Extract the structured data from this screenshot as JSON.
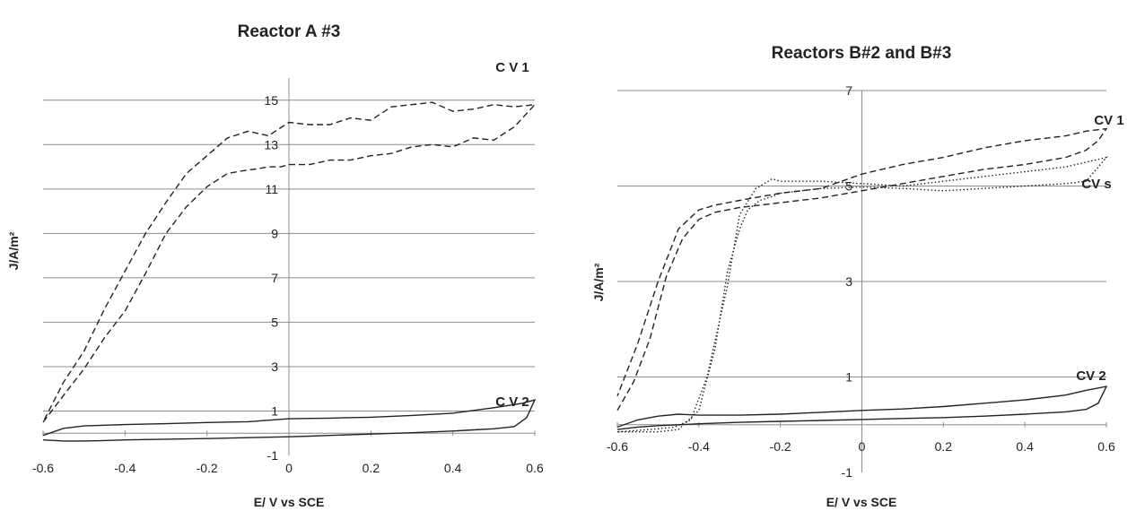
{
  "chart_data": [
    {
      "type": "line",
      "title": "Reactor A #3",
      "xlabel": "E/ V vs SCE",
      "ylabel": "J/A/m²",
      "xlim": [
        -0.6,
        0.6
      ],
      "ylim": [
        -1,
        16
      ],
      "grid": "horizontal",
      "xticks": [
        "-0.6",
        "-0.4",
        "-0.2",
        "0",
        "0.2",
        "0.4",
        "0.6"
      ],
      "yticks": [
        "-1",
        "1",
        "3",
        "5",
        "7",
        "9",
        "11",
        "13",
        "15"
      ],
      "series": [
        {
          "name": "C V 1",
          "style": "dashed",
          "x": [
            -0.6,
            -0.55,
            -0.5,
            -0.45,
            -0.4,
            -0.35,
            -0.3,
            -0.25,
            -0.2,
            -0.15,
            -0.12,
            -0.08,
            -0.05,
            -0.02,
            0.0,
            0.05,
            0.1,
            0.15,
            0.2,
            0.25,
            0.3,
            0.35,
            0.4,
            0.45,
            0.5,
            0.55,
            0.6,
            0.55,
            0.5,
            0.45,
            0.4,
            0.35,
            0.3,
            0.25,
            0.2,
            0.15,
            0.1,
            0.05,
            0.0,
            -0.05,
            -0.1,
            -0.15,
            -0.2,
            -0.25,
            -0.3,
            -0.35,
            -0.4,
            -0.45,
            -0.5,
            -0.55,
            -0.6
          ],
          "y": [
            0.5,
            1.7,
            2.9,
            4.3,
            5.5,
            7.2,
            9.0,
            10.2,
            11.1,
            11.7,
            11.8,
            11.9,
            12.0,
            12.0,
            12.1,
            12.1,
            12.3,
            12.3,
            12.5,
            12.6,
            12.9,
            13.0,
            12.9,
            13.3,
            13.2,
            13.8,
            14.8,
            14.7,
            14.8,
            14.6,
            14.5,
            14.9,
            14.8,
            14.7,
            14.1,
            14.2,
            13.9,
            13.9,
            14.0,
            13.4,
            13.6,
            13.3,
            12.5,
            11.7,
            10.4,
            9.0,
            7.3,
            5.6,
            3.7,
            2.3,
            0.5
          ]
        },
        {
          "name": "C V 2",
          "style": "solid",
          "x": [
            -0.6,
            -0.55,
            -0.5,
            -0.45,
            -0.4,
            -0.3,
            -0.2,
            -0.1,
            -0.05,
            0.0,
            0.05,
            0.1,
            0.2,
            0.3,
            0.4,
            0.45,
            0.5,
            0.55,
            0.58,
            0.6,
            0.57,
            0.5,
            0.4,
            0.3,
            0.2,
            0.1,
            0.0,
            -0.1,
            -0.2,
            -0.3,
            -0.4,
            -0.5,
            -0.55,
            -0.6
          ],
          "y": [
            -0.3,
            -0.35,
            -0.35,
            -0.33,
            -0.3,
            -0.27,
            -0.24,
            -0.2,
            -0.18,
            -0.16,
            -0.13,
            -0.1,
            -0.04,
            0.02,
            0.1,
            0.15,
            0.2,
            0.3,
            0.7,
            1.5,
            1.35,
            1.15,
            0.9,
            0.8,
            0.72,
            0.68,
            0.65,
            0.52,
            0.48,
            0.43,
            0.39,
            0.33,
            0.22,
            -0.1
          ]
        }
      ]
    },
    {
      "type": "line",
      "title": "Reactors B#2 and B#3",
      "xlabel": "E/ V vs SCE",
      "ylabel": "J/A/m²",
      "xlim": [
        -0.6,
        0.6
      ],
      "ylim": [
        -1,
        7
      ],
      "grid": "horizontal",
      "xticks": [
        "-0.6",
        "-0.4",
        "-0.2",
        "0",
        "0.2",
        "0.4",
        "0.6"
      ],
      "yticks": [
        "-1",
        "1",
        "3",
        "5",
        "7"
      ],
      "series": [
        {
          "name": "CV 1",
          "style": "dashed",
          "x": [
            -0.6,
            -0.56,
            -0.52,
            -0.48,
            -0.44,
            -0.4,
            -0.36,
            -0.3,
            -0.2,
            -0.1,
            0.0,
            0.1,
            0.2,
            0.3,
            0.4,
            0.5,
            0.55,
            0.58,
            0.6,
            0.55,
            0.5,
            0.4,
            0.3,
            0.2,
            0.1,
            0.0,
            -0.1,
            -0.2,
            -0.3,
            -0.36,
            -0.4,
            -0.45,
            -0.5,
            -0.55,
            -0.6
          ],
          "y": [
            0.3,
            0.9,
            1.8,
            3.1,
            3.9,
            4.3,
            4.45,
            4.55,
            4.65,
            4.75,
            4.9,
            5.05,
            5.2,
            5.35,
            5.45,
            5.6,
            5.75,
            5.95,
            6.2,
            6.15,
            6.05,
            5.95,
            5.8,
            5.6,
            5.45,
            5.25,
            4.95,
            4.85,
            4.7,
            4.6,
            4.5,
            4.1,
            3.0,
            1.7,
            0.6
          ]
        },
        {
          "name": "CV s",
          "style": "dotted",
          "x": [
            -0.6,
            -0.5,
            -0.45,
            -0.4,
            -0.36,
            -0.33,
            -0.3,
            -0.28,
            -0.25,
            -0.22,
            -0.2,
            -0.1,
            0.0,
            0.1,
            0.2,
            0.3,
            0.4,
            0.5,
            0.55,
            0.6,
            0.55,
            0.5,
            0.4,
            0.3,
            0.2,
            0.1,
            0.0,
            -0.1,
            -0.2,
            -0.22,
            -0.26,
            -0.3,
            -0.33,
            -0.38,
            -0.42,
            -0.46,
            -0.52,
            -0.6
          ],
          "y": [
            -0.15,
            -0.15,
            -0.1,
            0.3,
            1.6,
            3.2,
            4.1,
            4.5,
            4.7,
            4.78,
            4.85,
            4.95,
            4.98,
            4.95,
            4.9,
            4.95,
            5.0,
            5.05,
            5.1,
            5.6,
            5.5,
            5.4,
            5.3,
            5.2,
            5.1,
            5.0,
            5.05,
            5.1,
            5.1,
            5.15,
            4.95,
            4.4,
            2.9,
            1.0,
            0.1,
            -0.05,
            -0.1,
            -0.15
          ]
        },
        {
          "name": "CV 2",
          "style": "solid",
          "x": [
            -0.6,
            -0.55,
            -0.5,
            -0.45,
            -0.4,
            -0.3,
            -0.2,
            -0.1,
            0.0,
            0.1,
            0.2,
            0.3,
            0.4,
            0.5,
            0.55,
            0.58,
            0.6,
            0.55,
            0.5,
            0.4,
            0.3,
            0.2,
            0.1,
            0.0,
            -0.1,
            -0.2,
            -0.3,
            -0.4,
            -0.45,
            -0.5,
            -0.55,
            -0.6
          ],
          "y": [
            -0.1,
            -0.05,
            -0.02,
            0.0,
            0.02,
            0.05,
            0.07,
            0.09,
            0.11,
            0.13,
            0.15,
            0.18,
            0.22,
            0.27,
            0.32,
            0.45,
            0.8,
            0.72,
            0.62,
            0.52,
            0.45,
            0.38,
            0.33,
            0.3,
            0.26,
            0.22,
            0.2,
            0.2,
            0.22,
            0.18,
            0.1,
            -0.05
          ]
        }
      ]
    }
  ]
}
